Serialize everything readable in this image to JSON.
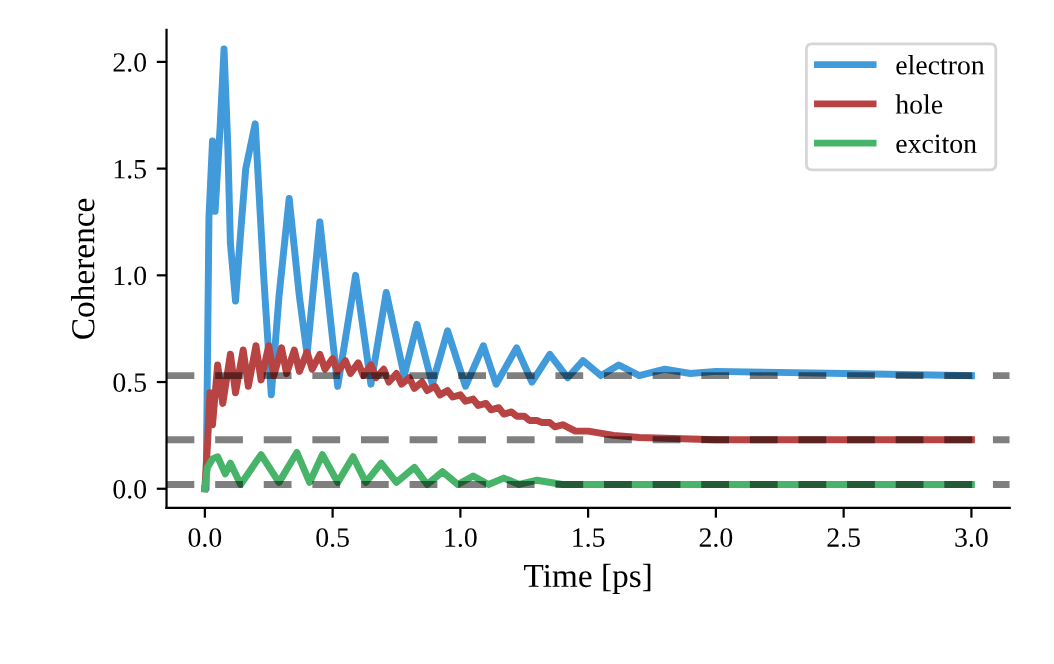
{
  "chart_data": {
    "type": "line",
    "xlabel": "Time [ps]",
    "ylabel": "Coherence",
    "xlim": [
      -0.15,
      3.15
    ],
    "ylim": [
      -0.09,
      2.15
    ],
    "xticks": [
      {
        "value": 0,
        "label": "0.0"
      },
      0.5,
      {
        "value": 1,
        "label": "1.0"
      },
      1.5,
      {
        "value": 2,
        "label": "2.0"
      },
      2.5,
      {
        "value": 3,
        "label": "3.0"
      }
    ],
    "yticks": [
      {
        "value": 0,
        "label": "0.0"
      },
      0.5,
      {
        "value": 1,
        "label": "1.0"
      },
      1.5,
      {
        "value": 2,
        "label": "2.0"
      }
    ],
    "grid": false,
    "legend": "top right",
    "line_style": "solid",
    "marker": "none",
    "series": [
      {
        "name": "electron",
        "color": "#419ad9",
        "x": [
          0.0,
          0.005,
          0.016,
          0.03,
          0.04,
          0.06,
          0.075,
          0.09,
          0.1,
          0.12,
          0.14,
          0.16,
          0.197,
          0.23,
          0.26,
          0.29,
          0.33,
          0.37,
          0.4,
          0.45,
          0.52,
          0.59,
          0.65,
          0.71,
          0.78,
          0.83,
          0.89,
          0.95,
          1.02,
          1.09,
          1.14,
          1.22,
          1.28,
          1.35,
          1.42,
          1.48,
          1.55,
          1.62,
          1.7,
          1.8,
          1.9,
          2.0,
          2.5,
          3.0
        ],
        "values": [
          0.0,
          0.0,
          1.27,
          1.63,
          1.3,
          1.7,
          2.06,
          1.6,
          1.15,
          0.88,
          1.2,
          1.5,
          1.71,
          1.0,
          0.44,
          0.9,
          1.36,
          0.9,
          0.63,
          1.25,
          0.48,
          1.0,
          0.49,
          0.92,
          0.53,
          0.77,
          0.49,
          0.74,
          0.48,
          0.67,
          0.49,
          0.66,
          0.5,
          0.63,
          0.52,
          0.6,
          0.53,
          0.58,
          0.53,
          0.56,
          0.54,
          0.55,
          0.54,
          0.53
        ]
      },
      {
        "name": "hole",
        "color": "#b84343",
        "x": [
          0.0,
          0.01,
          0.02,
          0.03,
          0.05,
          0.07,
          0.1,
          0.12,
          0.15,
          0.17,
          0.2,
          0.22,
          0.25,
          0.27,
          0.3,
          0.32,
          0.35,
          0.37,
          0.4,
          0.42,
          0.45,
          0.47,
          0.5,
          0.52,
          0.55,
          0.57,
          0.6,
          0.62,
          0.65,
          0.67,
          0.7,
          0.72,
          0.75,
          0.77,
          0.8,
          0.82,
          0.85,
          0.87,
          0.9,
          0.92,
          0.95,
          0.97,
          1.0,
          1.02,
          1.05,
          1.07,
          1.1,
          1.12,
          1.15,
          1.17,
          1.2,
          1.22,
          1.25,
          1.27,
          1.3,
          1.32,
          1.35,
          1.37,
          1.4,
          1.45,
          1.5,
          1.6,
          1.7,
          2.0,
          3.0
        ],
        "values": [
          0.0,
          0.2,
          0.45,
          0.3,
          0.58,
          0.4,
          0.63,
          0.45,
          0.65,
          0.48,
          0.67,
          0.51,
          0.67,
          0.53,
          0.66,
          0.54,
          0.65,
          0.55,
          0.64,
          0.56,
          0.63,
          0.56,
          0.61,
          0.55,
          0.6,
          0.54,
          0.59,
          0.53,
          0.58,
          0.52,
          0.56,
          0.5,
          0.54,
          0.49,
          0.52,
          0.47,
          0.5,
          0.46,
          0.48,
          0.44,
          0.46,
          0.43,
          0.44,
          0.41,
          0.42,
          0.39,
          0.4,
          0.37,
          0.38,
          0.35,
          0.36,
          0.34,
          0.34,
          0.32,
          0.32,
          0.31,
          0.31,
          0.29,
          0.3,
          0.27,
          0.27,
          0.25,
          0.24,
          0.23,
          0.23
        ]
      },
      {
        "name": "exciton",
        "color": "#48b46a",
        "x": [
          0.0,
          0.01,
          0.03,
          0.05,
          0.08,
          0.1,
          0.14,
          0.22,
          0.29,
          0.36,
          0.41,
          0.46,
          0.52,
          0.58,
          0.63,
          0.69,
          0.75,
          0.82,
          0.87,
          0.93,
          0.99,
          1.05,
          1.11,
          1.17,
          1.23,
          1.3,
          1.4,
          1.5,
          2.0,
          3.0
        ],
        "values": [
          0.0,
          0.1,
          0.14,
          0.15,
          0.07,
          0.12,
          0.02,
          0.16,
          0.03,
          0.17,
          0.03,
          0.16,
          0.03,
          0.15,
          0.03,
          0.12,
          0.03,
          0.1,
          0.02,
          0.08,
          0.02,
          0.06,
          0.02,
          0.05,
          0.02,
          0.04,
          0.02,
          0.02,
          0.02,
          0.02
        ]
      }
    ],
    "ref_lines": [
      {
        "axis": "y",
        "value": 0.53,
        "color": "#000000",
        "line_style": "dashed"
      },
      {
        "axis": "y",
        "value": 0.23,
        "color": "#000000",
        "line_style": "dashed"
      },
      {
        "axis": "y",
        "value": 0.02,
        "color": "#000000",
        "line_style": "dashed"
      }
    ]
  }
}
